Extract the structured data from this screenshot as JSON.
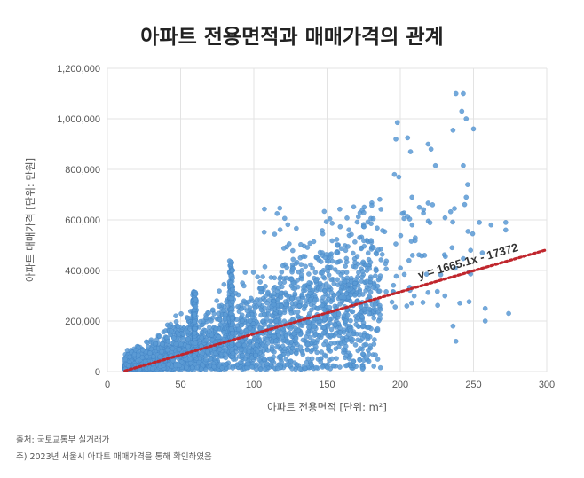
{
  "chart_data": {
    "type": "scatter",
    "title": "아파트 전용면적과 매매가격의 관계",
    "xlabel": "아파트 전용면적 [단위: m²]",
    "ylabel": "아파트 매매가격 [단위: 만원]",
    "xlim": [
      0,
      300
    ],
    "ylim": [
      0,
      1200000
    ],
    "x_ticks": [
      "0",
      "50",
      "100",
      "150",
      "200",
      "250",
      "300"
    ],
    "y_ticks": [
      "0",
      "200,000",
      "400,000",
      "600,000",
      "800,000",
      "1,000,000",
      "1,200,000"
    ],
    "grid": true,
    "trendline": {
      "slope": 1665.1,
      "intercept": -17372,
      "label": "y = 1665.1x - 17372",
      "color": "#c0262d"
    },
    "point_color": "#5b9bd5",
    "outliers": [
      {
        "x": 238,
        "y": 1100000
      },
      {
        "x": 243,
        "y": 1100000
      },
      {
        "x": 242,
        "y": 1030000
      },
      {
        "x": 245,
        "y": 1000000
      },
      {
        "x": 198,
        "y": 985000
      },
      {
        "x": 236,
        "y": 955000
      },
      {
        "x": 250,
        "y": 960000
      },
      {
        "x": 197,
        "y": 920000
      },
      {
        "x": 205,
        "y": 925000
      },
      {
        "x": 219,
        "y": 900000
      },
      {
        "x": 207,
        "y": 870000
      },
      {
        "x": 221,
        "y": 880000
      },
      {
        "x": 224,
        "y": 815000
      },
      {
        "x": 243,
        "y": 815000
      },
      {
        "x": 196,
        "y": 780000
      },
      {
        "x": 199,
        "y": 770000
      },
      {
        "x": 246,
        "y": 740000
      },
      {
        "x": 245,
        "y": 690000
      },
      {
        "x": 208,
        "y": 690000
      },
      {
        "x": 213,
        "y": 650000
      },
      {
        "x": 222,
        "y": 660000
      },
      {
        "x": 254,
        "y": 590000
      },
      {
        "x": 272,
        "y": 590000
      },
      {
        "x": 272,
        "y": 560000
      },
      {
        "x": 262,
        "y": 580000
      },
      {
        "x": 248,
        "y": 480000
      },
      {
        "x": 256,
        "y": 470000
      },
      {
        "x": 274,
        "y": 230000
      },
      {
        "x": 258,
        "y": 200000
      },
      {
        "x": 258,
        "y": 250000
      },
      {
        "x": 236,
        "y": 180000
      },
      {
        "x": 238,
        "y": 120000
      }
    ],
    "cluster_summary": {
      "x_range": [
        12,
        250
      ],
      "note_points": "dense cloud of transactions following the trendline"
    }
  },
  "footer": {
    "source": "출처: 국토교통부 실거래가",
    "note": "주) 2023년 서울시 아파트 매매가격을 통해 확인하였음"
  }
}
